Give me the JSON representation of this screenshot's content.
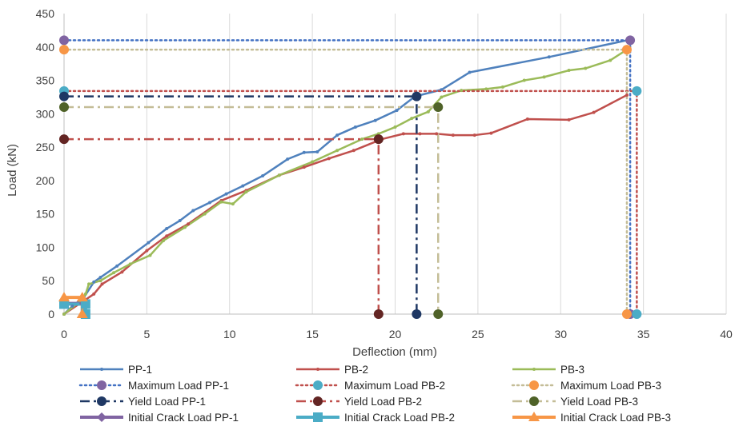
{
  "chart_data": {
    "type": "line",
    "xlabel": "Deflection  (mm)",
    "ylabel": "Load (kN)",
    "xlim": [
      0,
      40
    ],
    "ylim": [
      0,
      450
    ],
    "xticks": [
      0,
      5,
      10,
      15,
      20,
      25,
      30,
      35,
      40
    ],
    "yticks": [
      0,
      50,
      100,
      150,
      200,
      250,
      300,
      350,
      400,
      450
    ],
    "grid": "vertical",
    "legend_position": "bottom",
    "colors": {
      "pp": "#4f81bd",
      "pb2": "#c0504d",
      "pb3": "#9bbb59",
      "max_pp": "#4472c4",
      "max_pp_marker": "#8064a2",
      "max_pb2": "#c0504d",
      "max_pb2_marker": "#4bacc6",
      "max_pb3": "#c4bd97",
      "max_pb3_marker": "#f79646",
      "yield_pp": "#1f3864",
      "yield_pb2": "#c0504d",
      "yield_pb2_marker": "#632523",
      "yield_pb3": "#c4bd97",
      "yield_pb3_marker": "#4f6228",
      "crack_pp": "#8064a2",
      "crack_pb2": "#4bacc6",
      "crack_pb3": "#f79646"
    },
    "series": [
      {
        "name": "PP-1",
        "style": "solid",
        "marker": "small-dot",
        "color_key": "pp",
        "x": [
          0,
          0.5,
          1.2,
          1.8,
          2.2,
          3.2,
          5.1,
          6.2,
          7.0,
          7.8,
          8.8,
          9.8,
          10.8,
          12.0,
          13.5,
          14.5,
          15.3,
          16.5,
          17.6,
          18.8,
          20.1,
          21.2,
          22.8,
          24.5,
          29.3,
          34.0
        ],
        "y": [
          0,
          12,
          25,
          48,
          55,
          72,
          107,
          128,
          140,
          155,
          167,
          180,
          192,
          207,
          232,
          242,
          243,
          268,
          280,
          290,
          305,
          326,
          336,
          362,
          385,
          410
        ]
      },
      {
        "name": "PB-2",
        "style": "solid",
        "marker": "small-dot",
        "color_key": "pb2",
        "x": [
          0,
          1.2,
          1.8,
          2.3,
          3.5,
          5.0,
          6.2,
          7.5,
          9.5,
          11.0,
          13.0,
          14.5,
          16.0,
          17.5,
          19.2,
          20.5,
          21.5,
          22.5,
          23.5,
          24.8,
          25.8,
          28.0,
          30.5,
          32.0,
          34.0
        ],
        "y": [
          0,
          20,
          30,
          45,
          63,
          95,
          117,
          135,
          170,
          185,
          208,
          220,
          233,
          245,
          262,
          270,
          270,
          270,
          268,
          268,
          271,
          292,
          291,
          302,
          328
        ]
      },
      {
        "name": "PB-3",
        "style": "solid",
        "marker": "small-dot",
        "color_key": "pb3",
        "x": [
          0,
          1.0,
          1.3,
          1.5,
          2.2,
          3.0,
          4.0,
          5.2,
          6.0,
          7.3,
          8.5,
          9.5,
          10.2,
          11.0,
          13.0,
          15.0,
          16.5,
          18.0,
          19.0,
          20.0,
          21.0,
          22.0,
          22.8,
          24.0,
          25.5,
          26.5,
          27.8,
          29.0,
          30.5,
          31.5,
          33.0,
          34.0
        ],
        "y": [
          0,
          20,
          30,
          45,
          50,
          62,
          75,
          88,
          110,
          130,
          150,
          168,
          165,
          183,
          208,
          228,
          245,
          262,
          270,
          280,
          293,
          303,
          325,
          335,
          337,
          340,
          350,
          355,
          365,
          368,
          380,
          396
        ]
      },
      {
        "name": "Maximum Load PP-1",
        "style": "dot",
        "marker": "circle",
        "color_key": "max_pp",
        "marker_color_key": "max_pp_marker",
        "x": [
          0,
          34.2,
          34.2
        ],
        "y": [
          410,
          410,
          0
        ]
      },
      {
        "name": "Maximum Load PB-2",
        "style": "dot",
        "marker": "circle",
        "color_key": "max_pb2",
        "marker_color_key": "max_pb2_marker",
        "x": [
          0,
          34.6,
          34.6
        ],
        "y": [
          334,
          334,
          0
        ]
      },
      {
        "name": "Maximum Load PB-3",
        "style": "dot",
        "marker": "circle",
        "color_key": "max_pb3",
        "marker_color_key": "max_pb3_marker",
        "x": [
          0,
          34.0,
          34.0
        ],
        "y": [
          396,
          396,
          0
        ]
      },
      {
        "name": "Yield Load PP-1",
        "style": "dashdot",
        "marker": "circle",
        "color_key": "yield_pp",
        "x": [
          0,
          21.3,
          21.3
        ],
        "y": [
          326,
          326,
          0
        ]
      },
      {
        "name": "Yield Load PB-2",
        "style": "dashdot",
        "marker": "circle",
        "color_key": "yield_pb2",
        "marker_color_key": "yield_pb2_marker",
        "x": [
          0,
          19.0,
          19.0
        ],
        "y": [
          262,
          262,
          0
        ]
      },
      {
        "name": "Yield Load PB-3",
        "style": "dashdot",
        "marker": "circle",
        "color_key": "yield_pb3",
        "marker_color_key": "yield_pb3_marker",
        "x": [
          0,
          22.6,
          22.6
        ],
        "y": [
          310,
          310,
          0
        ]
      },
      {
        "name": "Initial Crack Load PP-1",
        "style": "solid-thick",
        "marker": "diamond",
        "color_key": "crack_pp",
        "x": [
          0,
          1.2,
          1.2
        ],
        "y": [
          16,
          16,
          0
        ]
      },
      {
        "name": "Initial Crack Load PB-2",
        "style": "solid-thick",
        "marker": "square",
        "color_key": "crack_pb2",
        "x": [
          0,
          1.3,
          1.3
        ],
        "y": [
          15,
          15,
          0
        ]
      },
      {
        "name": "Initial Crack Load PB-3",
        "style": "solid-thick",
        "marker": "triangle",
        "color_key": "crack_pb3",
        "x": [
          0,
          1.1,
          1.1
        ],
        "y": [
          25,
          25,
          0
        ]
      }
    ]
  }
}
